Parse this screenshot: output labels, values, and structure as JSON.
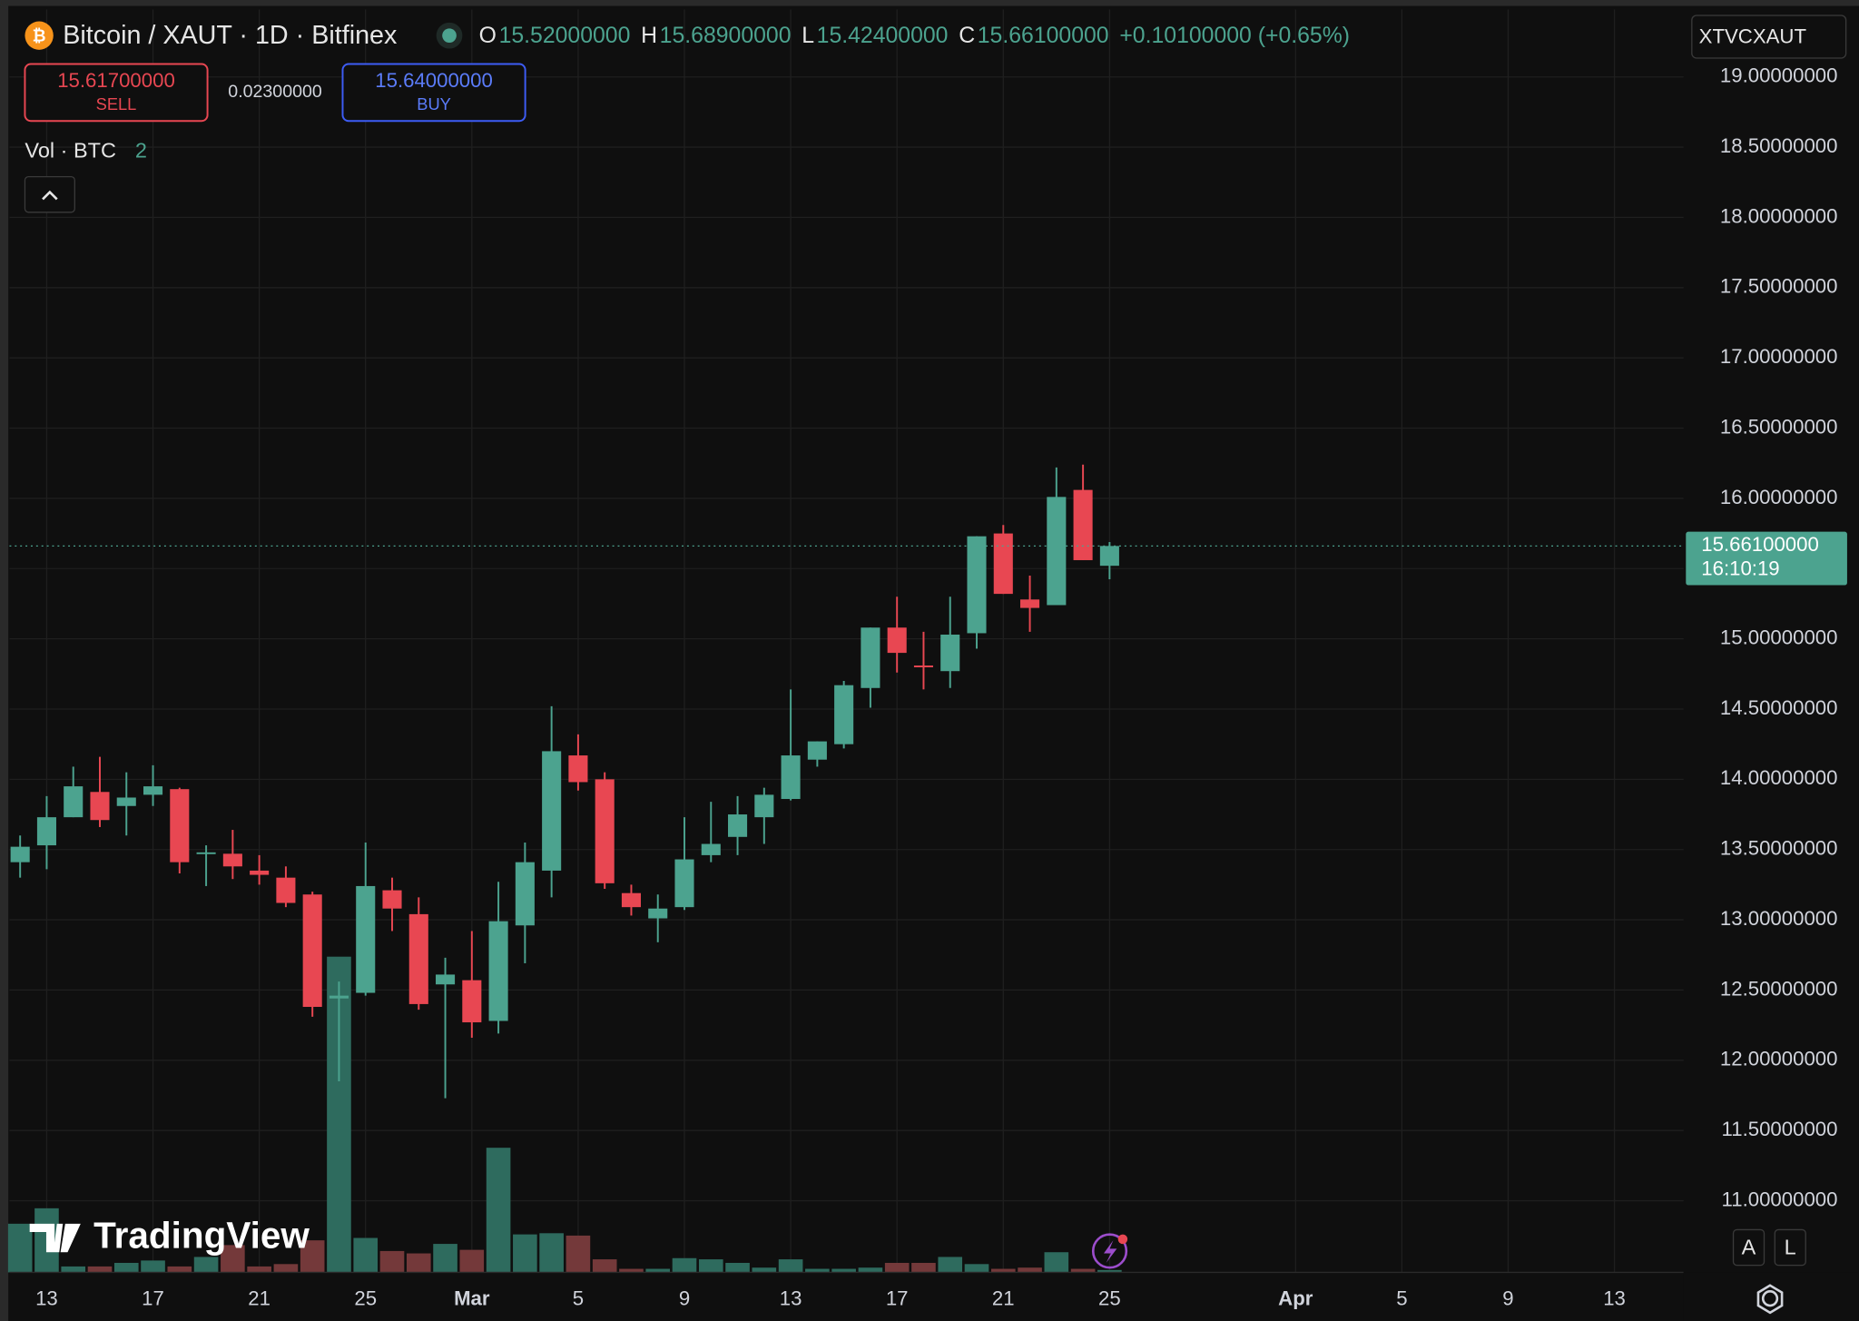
{
  "header": {
    "symbol": "Bitcoin / XAUT · 1D · Bitfinex",
    "ohlc": [
      {
        "label": "O",
        "value": "15.52000000"
      },
      {
        "label": "H",
        "value": "15.68900000"
      },
      {
        "label": "L",
        "value": "15.42400000"
      },
      {
        "label": "C",
        "value": "15.66100000"
      }
    ],
    "change": "+0.10100000 (+0.65%)",
    "symbol_code": "XTVCXAUT"
  },
  "trade": {
    "sell_price": "15.61700000",
    "sell_label": "SELL",
    "spread": "0.02300000",
    "buy_price": "15.64000000",
    "buy_label": "BUY"
  },
  "legend": {
    "volume_label": "Vol · BTC",
    "volume_value": "2"
  },
  "watermark": "TradingView",
  "scale_buttons": [
    "A",
    "L"
  ],
  "chart_data": {
    "type": "candlestick",
    "categories": [
      null,
      "13",
      null,
      null,
      null,
      "17",
      null,
      null,
      null,
      "21",
      null,
      null,
      null,
      "25",
      null,
      null,
      null,
      "Mar",
      null,
      null,
      null,
      "5",
      null,
      null,
      null,
      "9",
      null,
      null,
      null,
      "13",
      null,
      null,
      null,
      "17",
      null,
      null,
      null,
      "21",
      null,
      null,
      null,
      "25"
    ],
    "xlim": [
      -0.4,
      62.6
    ],
    "xticks": [
      {
        "value": 48,
        "label": "Apr"
      },
      {
        "value": 52,
        "label": "5"
      },
      {
        "value": 56,
        "label": "9"
      },
      {
        "value": 60,
        "label": "13"
      }
    ],
    "ylim": [
      10.49,
      19.48
    ],
    "yticks": [
      {
        "value": 11,
        "label": "11.00000000"
      },
      {
        "value": 11.5,
        "label": "11.50000000"
      },
      {
        "value": 12,
        "label": "12.00000000"
      },
      {
        "value": 12.5,
        "label": "12.50000000"
      },
      {
        "value": 13,
        "label": "13.00000000"
      },
      {
        "value": 13.5,
        "label": "13.50000000"
      },
      {
        "value": 14,
        "label": "14.00000000"
      },
      {
        "value": 14.5,
        "label": "14.50000000"
      },
      {
        "value": 15,
        "label": "15.00000000"
      },
      {
        "value": 15.5,
        "label": "15.50000000"
      },
      {
        "value": 16,
        "label": "16.00000000"
      },
      {
        "value": 16.5,
        "label": "16.50000000"
      },
      {
        "value": 17,
        "label": "17.00000000"
      },
      {
        "value": 17.5,
        "label": "17.50000000"
      },
      {
        "value": 18,
        "label": "18.00000000"
      },
      {
        "value": 18.5,
        "label": "18.50000000"
      },
      {
        "value": 19,
        "label": "19.00000000"
      }
    ],
    "grid": true,
    "open": [
      13.41,
      13.53,
      13.73,
      13.91,
      13.81,
      13.89,
      13.93,
      13.47,
      13.47,
      13.35,
      13.3,
      13.18,
      12.44,
      12.48,
      13.21,
      13.04,
      12.54,
      12.57,
      12.28,
      12.96,
      13.35,
      14.17,
      14.0,
      13.19,
      13.01,
      13.09,
      13.46,
      13.59,
      13.73,
      13.86,
      14.14,
      14.25,
      14.65,
      15.08,
      14.81,
      14.77,
      15.04,
      15.75,
      15.28,
      15.24,
      16.06,
      15.52
    ],
    "high": [
      13.6,
      13.88,
      14.09,
      14.16,
      14.05,
      14.1,
      13.94,
      13.53,
      13.64,
      13.46,
      13.38,
      13.2,
      12.56,
      13.55,
      13.3,
      13.16,
      12.73,
      12.92,
      13.27,
      13.55,
      14.52,
      14.32,
      14.05,
      13.25,
      13.18,
      13.73,
      13.84,
      13.88,
      13.94,
      14.64,
      14.27,
      14.7,
      15.08,
      15.3,
      15.05,
      15.3,
      15.73,
      15.81,
      15.45,
      16.22,
      16.24,
      15.689
    ],
    "low": [
      13.3,
      13.36,
      13.73,
      13.66,
      13.6,
      13.81,
      13.33,
      13.24,
      13.29,
      13.25,
      13.09,
      12.31,
      11.85,
      12.46,
      12.92,
      12.36,
      11.73,
      12.16,
      12.19,
      12.69,
      13.16,
      13.92,
      13.22,
      13.03,
      12.84,
      13.07,
      13.41,
      13.46,
      13.54,
      13.85,
      14.09,
      14.22,
      14.51,
      14.76,
      14.64,
      14.65,
      14.93,
      15.32,
      15.05,
      15.24,
      15.56,
      15.424
    ],
    "close": [
      13.52,
      13.73,
      13.95,
      13.71,
      13.87,
      13.95,
      13.41,
      13.48,
      13.38,
      13.32,
      13.12,
      12.38,
      12.46,
      13.24,
      13.08,
      12.4,
      12.61,
      12.27,
      12.99,
      13.41,
      14.2,
      13.98,
      13.26,
      13.09,
      13.08,
      13.43,
      13.54,
      13.75,
      13.89,
      14.17,
      14.27,
      14.67,
      15.08,
      14.9,
      14.8,
      15.03,
      15.73,
      15.32,
      15.22,
      16.01,
      15.56,
      15.661
    ],
    "volume": [
      41,
      54,
      5,
      5,
      8,
      10,
      5,
      13,
      23,
      5,
      7,
      27,
      266,
      29,
      18,
      16,
      24,
      19,
      105,
      32,
      33,
      31,
      11,
      3,
      3,
      12,
      11,
      8,
      4,
      11,
      3,
      3,
      4,
      8,
      8,
      13,
      7,
      3,
      4,
      17,
      3,
      2
    ],
    "up_color": "#4ca38f",
    "down_color": "#e84752",
    "volume_up_color": "#2e6b5e",
    "volume_down_color": "#74393a",
    "last_price_label": "15.66100000",
    "countdown": "16:10:19"
  }
}
